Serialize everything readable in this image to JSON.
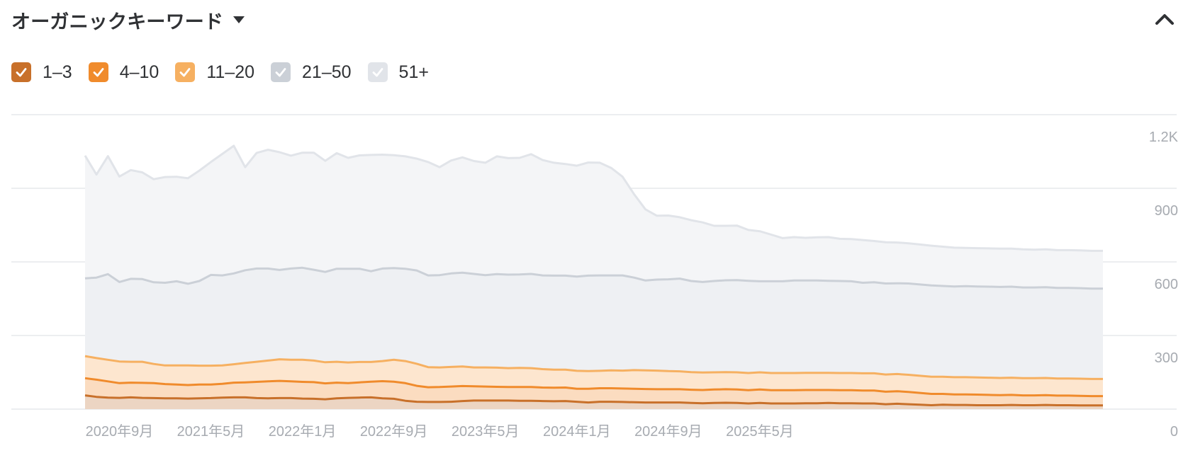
{
  "header": {
    "title": "オーガニックキーワード"
  },
  "legend": [
    {
      "label": "1–3",
      "color": "#c8702a"
    },
    {
      "label": "4–10",
      "color": "#f08b2c"
    },
    {
      "label": "11–20",
      "color": "#f6b061"
    },
    {
      "label": "21–50",
      "color": "#cbd0d7"
    },
    {
      "label": "51+",
      "color": "#e1e4e9"
    }
  ],
  "chart_data": {
    "type": "area",
    "stacked": true,
    "grid": true,
    "ylim": [
      0,
      1200
    ],
    "yticks": [
      0,
      300,
      600,
      900,
      1200
    ],
    "ytick_labels": [
      "0",
      "300",
      "600",
      "900",
      "1.2K"
    ],
    "xtick_labels": [
      "2020年9月",
      "2021年5月",
      "2022年1月",
      "2022年9月",
      "2023年5月",
      "2024年1月",
      "2024年9月",
      "2025年5月"
    ],
    "xtick_index": [
      3,
      11,
      19,
      27,
      35,
      43,
      51,
      59
    ],
    "series": [
      {
        "name": "1–3",
        "values": [
          56,
          50,
          47,
          46,
          48,
          46,
          45,
          44,
          44,
          43,
          44,
          45,
          47,
          48,
          48,
          45,
          44,
          45,
          45,
          43,
          42,
          40,
          44,
          46,
          47,
          48,
          44,
          42,
          34,
          30,
          29,
          29,
          30,
          33,
          35,
          35,
          35,
          35,
          34,
          34,
          33,
          32,
          33,
          30,
          27,
          30,
          30,
          29,
          28,
          27,
          27,
          27,
          27,
          25,
          24,
          25,
          26,
          25,
          23,
          25,
          23,
          23,
          23,
          24,
          24,
          25,
          24,
          24,
          23,
          23,
          20,
          22,
          20,
          18,
          16,
          18,
          17,
          17,
          16,
          16,
          16,
          17,
          16,
          16,
          17,
          16,
          16,
          15,
          15,
          15
        ]
      },
      {
        "name": "4–10",
        "values": [
          70,
          70,
          66,
          60,
          60,
          61,
          61,
          58,
          56,
          55,
          56,
          55,
          56,
          60,
          61,
          66,
          69,
          70,
          68,
          68,
          68,
          65,
          64,
          60,
          62,
          64,
          70,
          70,
          72,
          65,
          60,
          61,
          62,
          61,
          58,
          57,
          56,
          55,
          56,
          56,
          55,
          55,
          55,
          53,
          56,
          55,
          55,
          55,
          55,
          55,
          54,
          54,
          54,
          54,
          54,
          55,
          55,
          55,
          54,
          55,
          54,
          54,
          54,
          54,
          54,
          53,
          53,
          53,
          53,
          53,
          51,
          51,
          50,
          48,
          46,
          44,
          43,
          43,
          43,
          42,
          41,
          41,
          40,
          40,
          40,
          39,
          39,
          39,
          38,
          38
        ]
      },
      {
        "name": "11–20",
        "values": [
          90,
          88,
          88,
          88,
          85,
          86,
          78,
          76,
          78,
          80,
          77,
          77,
          75,
          75,
          79,
          82,
          85,
          88,
          88,
          90,
          88,
          86,
          85,
          84,
          83,
          80,
          82,
          89,
          90,
          90,
          82,
          80,
          80,
          80,
          77,
          78,
          78,
          77,
          78,
          77,
          75,
          74,
          73,
          73,
          72,
          71,
          73,
          73,
          76,
          76,
          76,
          74,
          73,
          72,
          71,
          70,
          70,
          70,
          70,
          70,
          70,
          70,
          70,
          70,
          70,
          70,
          70,
          70,
          70,
          70,
          70,
          70,
          70,
          70,
          70,
          70,
          70,
          70,
          70,
          70,
          70,
          70,
          70,
          70,
          70,
          70,
          70,
          70,
          70,
          70
        ]
      },
      {
        "name": "21–50",
        "values": [
          317,
          328,
          349,
          324,
          338,
          337,
          333,
          337,
          343,
          333,
          345,
          370,
          367,
          370,
          378,
          380,
          375,
          364,
          372,
          375,
          370,
          368,
          379,
          382,
          380,
          370,
          377,
          374,
          376,
          380,
          374,
          376,
          381,
          382,
          381,
          376,
          381,
          381,
          381,
          384,
          382,
          383,
          383,
          384,
          389,
          389,
          387,
          388,
          377,
          366,
          371,
          374,
          378,
          371,
          369,
          372,
          374,
          376,
          376,
          371,
          374,
          374,
          377,
          376,
          376,
          375,
          375,
          374,
          369,
          371,
          371,
          370,
          372,
          372,
          372,
          370,
          370,
          371,
          371,
          371,
          371,
          371,
          370,
          370,
          370,
          369,
          369,
          369,
          368,
          368
        ]
      },
      {
        "name": "51+",
        "values": [
          500,
          420,
          481,
          430,
          443,
          435,
          420,
          431,
          426,
          430,
          450,
          460,
          495,
          520,
          420,
          471,
          484,
          480,
          460,
          469,
          477,
          453,
          471,
          452,
          462,
          474,
          464,
          460,
          458,
          456,
          462,
          440,
          460,
          470,
          460,
          458,
          480,
          475,
          475,
          488,
          470,
          460,
          455,
          452,
          461,
          459,
          438,
          402,
          340,
          290,
          260,
          260,
          250,
          248,
          243,
          225,
          222,
          222,
          207,
          204,
          190,
          176,
          177,
          174,
          176,
          178,
          172,
          172,
          174,
          168,
          168,
          166,
          164,
          163,
          162,
          160,
          158,
          156,
          156,
          156,
          156,
          155,
          155,
          154,
          154,
          154,
          154,
          154,
          154,
          154
        ]
      }
    ]
  }
}
